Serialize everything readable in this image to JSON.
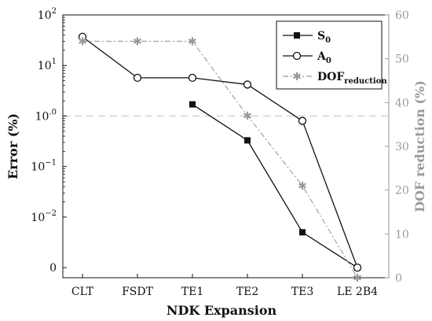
{
  "chart_data": {
    "type": "line",
    "xlabel": "NDK Expansion",
    "ylabel": "Error (%)",
    "y2label": "DOF reduction (%)",
    "categories": [
      "CLT",
      "FSDT",
      "TE1",
      "TE2",
      "TE3",
      "LE 2B4"
    ],
    "y_scale": "symlog",
    "y_ticks": [
      {
        "value": 100,
        "base": "10",
        "exp": "2"
      },
      {
        "value": 10,
        "base": "10",
        "exp": "1"
      },
      {
        "value": 1,
        "label": "10",
        "suffix": ".0"
      },
      {
        "value": 0.1,
        "base": "10",
        "exp": "−1"
      },
      {
        "value": 0.01,
        "base": "10",
        "exp": "−2"
      },
      {
        "value": 0,
        "label": "0"
      }
    ],
    "y1_tick_texts": {
      "t1": "1.0",
      "t0": "0",
      "base": "10",
      "e2": "2",
      "e1": "1",
      "em1": "−1",
      "em2": "−2"
    },
    "y2lim": [
      0,
      60
    ],
    "y2_ticks": [
      "0",
      "10",
      "20",
      "30",
      "40",
      "50",
      "60"
    ],
    "reference_line": {
      "value": 1,
      "style": "dashed",
      "color": "#cfcfcf"
    },
    "series": [
      {
        "name": "S",
        "subscript": "0",
        "axis": "left",
        "marker": "square",
        "color": "#111111",
        "values": [
          null,
          null,
          1.7,
          0.33,
          0.005,
          0
        ]
      },
      {
        "name": "A",
        "subscript": "0",
        "axis": "left",
        "marker": "circle",
        "color": "#111111",
        "values": [
          37,
          5.7,
          5.7,
          4.2,
          0.8,
          0
        ]
      },
      {
        "name": "DOF",
        "subscript": "reduction",
        "axis": "right",
        "marker": "star",
        "color": "#9a9a9a",
        "dash": "dashdot",
        "values": [
          54,
          54,
          54,
          37,
          21,
          0
        ]
      }
    ],
    "legend_position": "top-right",
    "grid": false
  }
}
